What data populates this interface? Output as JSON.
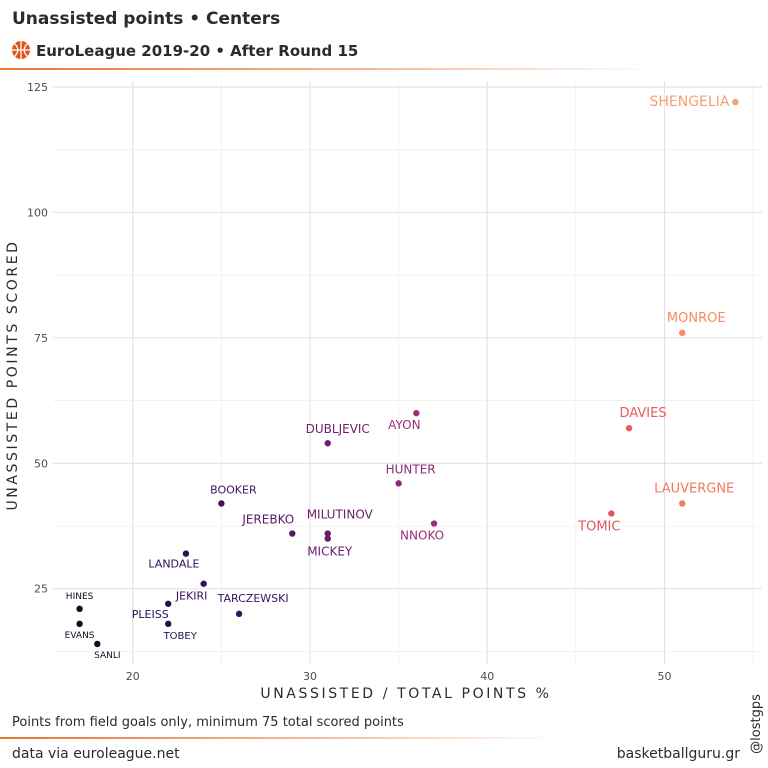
{
  "header": {
    "title": "Unassisted points • Centers",
    "subtitle": "EuroLeague 2019-20 • After Round 15"
  },
  "footer": {
    "note": "Points from field goals only, minimum 75 total scored points",
    "source": "data via euroleague.net",
    "site": "basketballguru.gr",
    "handle": "@lostgps"
  },
  "colors": {
    "divider": "#e8742f",
    "logo": "#e4531c",
    "grid": "#ebebeb",
    "text": "#2b2b2b"
  },
  "icons": {
    "logo": "euroleague-basketball-logo-icon"
  },
  "chart_data": {
    "type": "scatter",
    "xlabel": "UNASSISTED / TOTAL POINTS %",
    "ylabel": "UNASSISTED POINTS SCORED",
    "xlim": [
      15.5,
      55.5
    ],
    "ylim": [
      10,
      126
    ],
    "xticks": [
      20,
      30,
      40,
      50
    ],
    "yticks": [
      25,
      50,
      75,
      100,
      125
    ],
    "grid": true,
    "points": [
      {
        "label": "SHENGELIA",
        "x": 54,
        "y": 122,
        "color": "#f4a070"
      },
      {
        "label": "MONROE",
        "x": 51,
        "y": 76,
        "color": "#f68a60"
      },
      {
        "label": "DAVIES",
        "x": 48,
        "y": 57,
        "color": "#e75c5c"
      },
      {
        "label": "LAUVERGNE",
        "x": 51,
        "y": 42,
        "color": "#f07a60"
      },
      {
        "label": "TOMIC",
        "x": 47,
        "y": 40,
        "color": "#e0575c"
      },
      {
        "label": "AYON",
        "x": 36,
        "y": 60,
        "color": "#9c2f7a"
      },
      {
        "label": "DUBLJEVIC",
        "x": 31,
        "y": 54,
        "color": "#6e1e6e"
      },
      {
        "label": "HUNTER",
        "x": 35,
        "y": 46,
        "color": "#8a2878"
      },
      {
        "label": "NNOKO",
        "x": 37,
        "y": 38,
        "color": "#9a2e7a"
      },
      {
        "label": "MILUTINOV",
        "x": 31,
        "y": 36,
        "color": "#681c6a"
      },
      {
        "label": "MICKEY",
        "x": 31,
        "y": 35,
        "color": "#681c6a"
      },
      {
        "label": "JEREBKO",
        "x": 29,
        "y": 36,
        "color": "#561966"
      },
      {
        "label": "BOOKER",
        "x": 25,
        "y": 42,
        "color": "#3e1460"
      },
      {
        "label": "LANDALE",
        "x": 23,
        "y": 32,
        "color": "#2e1056"
      },
      {
        "label": "JEKIRI",
        "x": 24,
        "y": 26,
        "color": "#30115a"
      },
      {
        "label": "TARCZEWSKI",
        "x": 26,
        "y": 20,
        "color": "#381360"
      },
      {
        "label": "PLEISS",
        "x": 22,
        "y": 22,
        "color": "#26104e"
      },
      {
        "label": "TOBEY",
        "x": 22,
        "y": 18,
        "color": "#26104e"
      },
      {
        "label": "HINES",
        "x": 17,
        "y": 21,
        "color": "#0e0a1e"
      },
      {
        "label": "EVANS",
        "x": 17,
        "y": 18,
        "color": "#0e0a1e"
      },
      {
        "label": "SANLI",
        "x": 18,
        "y": 14,
        "color": "#120b24"
      }
    ]
  }
}
